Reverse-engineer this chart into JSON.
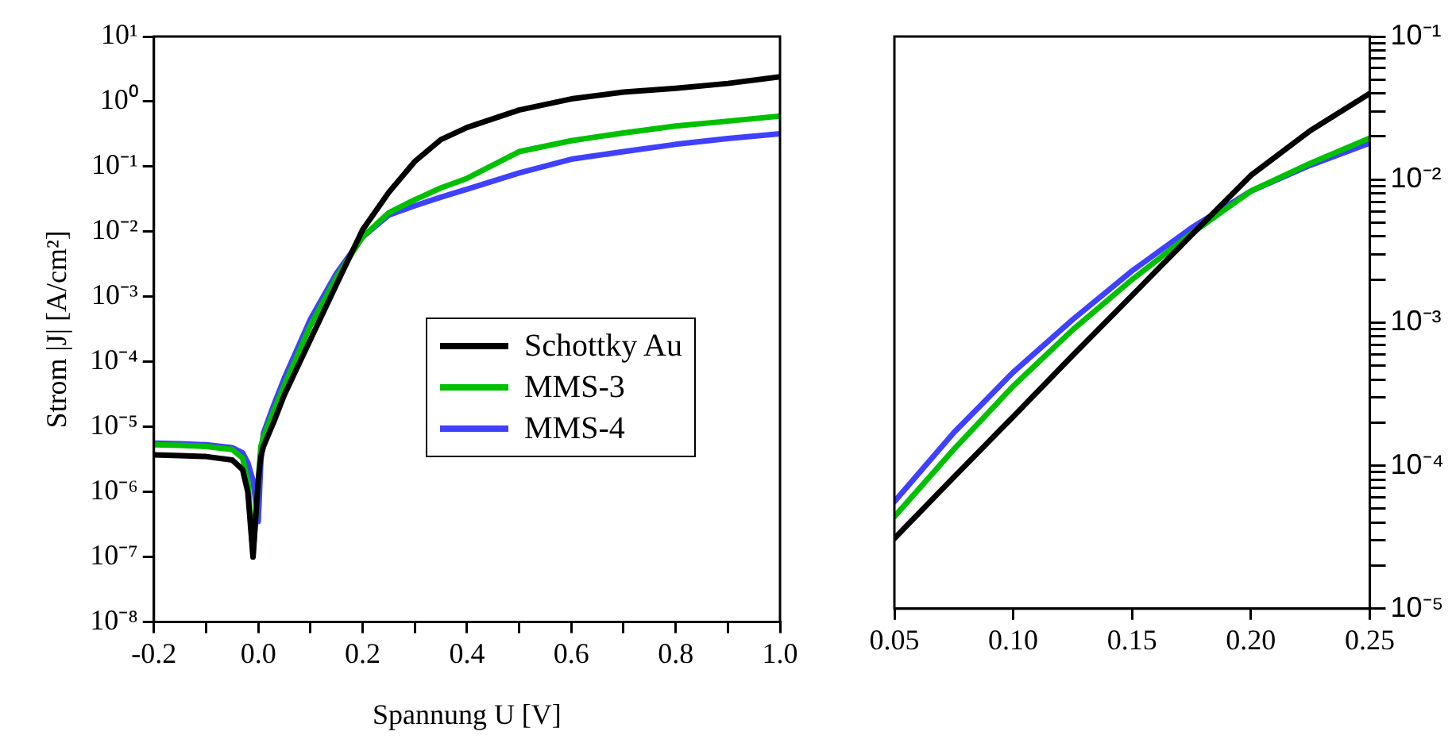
{
  "chart_data": [
    {
      "type": "line",
      "xlabel": "Spannung U [V]",
      "ylabel": "Strom |J| [A/cm²]",
      "log": "y",
      "legend": "right",
      "marker": "none",
      "line_style": "solid",
      "grid": false,
      "xlim": [
        -0.2,
        1.0
      ],
      "xticks": [
        {
          "value": -0.2,
          "label": "-0.2"
        },
        {
          "value": -0.1,
          "label": null
        },
        {
          "value": 0,
          "label": "0.0"
        },
        {
          "value": 0.1,
          "label": null
        },
        {
          "value": 0.2,
          "label": "0.2"
        },
        {
          "value": 0.3,
          "label": null
        },
        {
          "value": 0.4,
          "label": "0.4"
        },
        {
          "value": 0.5,
          "label": null
        },
        {
          "value": 0.6,
          "label": "0.6"
        },
        {
          "value": 0.7,
          "label": null
        },
        {
          "value": 0.8,
          "label": "0.8"
        },
        {
          "value": 0.9,
          "label": null
        },
        {
          "value": 1.0,
          "label": "1.0"
        }
      ],
      "ylim": [
        1e-08,
        10
      ],
      "yticks": [
        {
          "value": 1e-08,
          "label": "10⁻⁸"
        },
        {
          "value": 1e-07,
          "label": "10⁻⁷"
        },
        {
          "value": 1e-06,
          "label": "10⁻⁶"
        },
        {
          "value": 1e-05,
          "label": "10⁻⁵"
        },
        {
          "value": 0.0001,
          "label": "10⁻⁴"
        },
        {
          "value": 0.001,
          "label": "10⁻³"
        },
        {
          "value": 0.01,
          "label": "10⁻²"
        },
        {
          "value": 0.1,
          "label": "10⁻¹"
        },
        {
          "value": 1,
          "label": "10⁰"
        },
        {
          "value": 10,
          "label": "10¹"
        }
      ],
      "x": [
        -0.2,
        -0.15,
        -0.1,
        -0.05,
        -0.03,
        -0.02,
        -0.01,
        0.0,
        0.005,
        0.01,
        0.03,
        0.05,
        0.1,
        0.15,
        0.2,
        0.25,
        0.3,
        0.35,
        0.4,
        0.5,
        0.6,
        0.7,
        0.8,
        0.9,
        1.0
      ],
      "series": [
        {
          "name": "Schottky Au",
          "color": "#000000",
          "values": [
            3.7e-06,
            3.6e-06,
            3.5e-06,
            3.1e-06,
            2.2e-06,
            1e-06,
            1e-07,
            1.5e-06,
            3.5e-06,
            5e-06,
            1.2e-05,
            3.1e-05,
            0.00022,
            0.00155,
            0.0107,
            0.04,
            0.12,
            0.26,
            0.4,
            0.74,
            1.1,
            1.4,
            1.6,
            1.9,
            2.4
          ]
        },
        {
          "name": "MMS-3",
          "color": "#00c000",
          "values": [
            5.3e-06,
            5.2e-06,
            5e-06,
            4.5e-06,
            3.3e-06,
            1.5e-06,
            1.1e-07,
            1.5e-06,
            5e-06,
            7e-06,
            1.8e-05,
            4.4e-05,
            0.00036,
            0.002,
            0.0083,
            0.0195,
            0.031,
            0.047,
            0.066,
            0.17,
            0.25,
            0.33,
            0.42,
            0.5,
            0.6
          ]
        },
        {
          "name": "MMS-4",
          "color": "#4040ff",
          "values": [
            5.6e-06,
            5.5e-06,
            5.3e-06,
            4.8e-06,
            4e-06,
            2.8e-06,
            1.5e-06,
            3.5e-07,
            3e-06,
            8e-06,
            2.2e-05,
            5.6e-05,
            0.00045,
            0.0023,
            0.0083,
            0.018,
            0.025,
            0.034,
            0.045,
            0.08,
            0.13,
            0.17,
            0.22,
            0.27,
            0.32
          ]
        }
      ]
    },
    {
      "type": "line",
      "log": "y",
      "marker": "none",
      "line_style": "solid",
      "grid": false,
      "xlim": [
        0.05,
        0.25
      ],
      "xticks": [
        {
          "value": 0.05,
          "label": "0.05"
        },
        {
          "value": 0.1,
          "label": "0.10"
        },
        {
          "value": 0.15,
          "label": "0.15"
        },
        {
          "value": 0.2,
          "label": "0.20"
        },
        {
          "value": 0.25,
          "label": "0.25"
        }
      ],
      "ylim": [
        1e-05,
        0.1
      ],
      "yticks": [
        {
          "value": 1e-05,
          "label": "10⁻⁵"
        },
        {
          "value": 2e-05,
          "label": null
        },
        {
          "value": 3e-05,
          "label": null
        },
        {
          "value": 4e-05,
          "label": null
        },
        {
          "value": 5e-05,
          "label": null
        },
        {
          "value": 6e-05,
          "label": null
        },
        {
          "value": 7e-05,
          "label": null
        },
        {
          "value": 8e-05,
          "label": null
        },
        {
          "value": 9e-05,
          "label": null
        },
        {
          "value": 0.0001,
          "label": "10⁻⁴"
        },
        {
          "value": 0.0002,
          "label": null
        },
        {
          "value": 0.0003,
          "label": null
        },
        {
          "value": 0.0004,
          "label": null
        },
        {
          "value": 0.0005,
          "label": null
        },
        {
          "value": 0.0006,
          "label": null
        },
        {
          "value": 0.0007,
          "label": null
        },
        {
          "value": 0.0008,
          "label": null
        },
        {
          "value": 0.0009,
          "label": null
        },
        {
          "value": 0.001,
          "label": "10⁻³"
        },
        {
          "value": 0.002,
          "label": null
        },
        {
          "value": 0.003,
          "label": null
        },
        {
          "value": 0.004,
          "label": null
        },
        {
          "value": 0.005,
          "label": null
        },
        {
          "value": 0.006,
          "label": null
        },
        {
          "value": 0.007,
          "label": null
        },
        {
          "value": 0.008,
          "label": null
        },
        {
          "value": 0.009,
          "label": null
        },
        {
          "value": 0.01,
          "label": "10⁻²"
        },
        {
          "value": 0.02,
          "label": null
        },
        {
          "value": 0.03,
          "label": null
        },
        {
          "value": 0.04,
          "label": null
        },
        {
          "value": 0.05,
          "label": null
        },
        {
          "value": 0.06,
          "label": null
        },
        {
          "value": 0.07,
          "label": null
        },
        {
          "value": 0.08,
          "label": null
        },
        {
          "value": 0.09,
          "label": null
        },
        {
          "value": 0.1,
          "label": "10⁻¹"
        }
      ],
      "x": [
        0.05,
        0.075,
        0.1,
        0.125,
        0.15,
        0.175,
        0.2,
        0.225,
        0.25
      ],
      "series": [
        {
          "color": "#000000",
          "values": [
            3.1e-05,
            8.3e-05,
            0.00022,
            0.00059,
            0.00155,
            0.0041,
            0.0107,
            0.022,
            0.04
          ]
        },
        {
          "color": "#00c000",
          "values": [
            4.4e-05,
            0.00013,
            0.00036,
            0.00089,
            0.002,
            0.0042,
            0.0083,
            0.013,
            0.0195
          ]
        },
        {
          "color": "#4040ff",
          "values": [
            5.6e-05,
            0.00017,
            0.00045,
            0.00105,
            0.0023,
            0.0046,
            0.0083,
            0.0126,
            0.018
          ]
        }
      ]
    }
  ]
}
